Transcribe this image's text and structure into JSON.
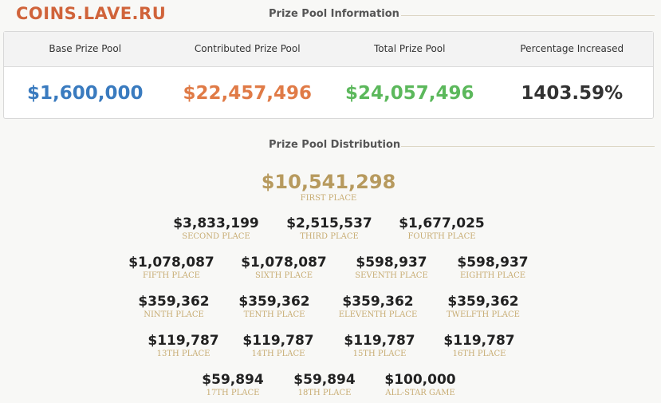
{
  "watermark": "COINS.LAVE.RU",
  "info": {
    "title": "Prize Pool Information",
    "columns": [
      {
        "label": "Base Prize Pool",
        "value": "$1,600,000",
        "color": "#3a7bbf"
      },
      {
        "label": "Contributed Prize Pool",
        "value": "$22,457,496",
        "color": "#e07b47"
      },
      {
        "label": "Total Prize Pool",
        "value": "$24,057,496",
        "color": "#5cb85c"
      },
      {
        "label": "Percentage Increased",
        "value": "1403.59%",
        "color": "#333333"
      }
    ]
  },
  "distribution": {
    "title": "Prize Pool Distribution",
    "prizes": [
      {
        "amount": "$10,541,298",
        "label": "FIRST PLACE"
      },
      {
        "amount": "$3,833,199",
        "label": "SECOND PLACE"
      },
      {
        "amount": "$2,515,537",
        "label": "THIRD PLACE"
      },
      {
        "amount": "$1,677,025",
        "label": "FOURTH PLACE"
      },
      {
        "amount": "$1,078,087",
        "label": "FIFTH PLACE"
      },
      {
        "amount": "$1,078,087",
        "label": "SIXTH PLACE"
      },
      {
        "amount": "$598,937",
        "label": "SEVENTH PLACE"
      },
      {
        "amount": "$598,937",
        "label": "EIGHTH PLACE"
      },
      {
        "amount": "$359,362",
        "label": "NINTH PLACE"
      },
      {
        "amount": "$359,362",
        "label": "TENTH PLACE"
      },
      {
        "amount": "$359,362",
        "label": "ELEVENTH PLACE"
      },
      {
        "amount": "$359,362",
        "label": "TWELFTH PLACE"
      },
      {
        "amount": "$119,787",
        "label": "13TH PLACE"
      },
      {
        "amount": "$119,787",
        "label": "14TH PLACE"
      },
      {
        "amount": "$119,787",
        "label": "15TH PLACE"
      },
      {
        "amount": "$119,787",
        "label": "16TH PLACE"
      },
      {
        "amount": "$59,894",
        "label": "17TH PLACE"
      },
      {
        "amount": "$59,894",
        "label": "18TH PLACE"
      },
      {
        "amount": "$100,000",
        "label": "ALL-STAR GAME"
      }
    ]
  }
}
